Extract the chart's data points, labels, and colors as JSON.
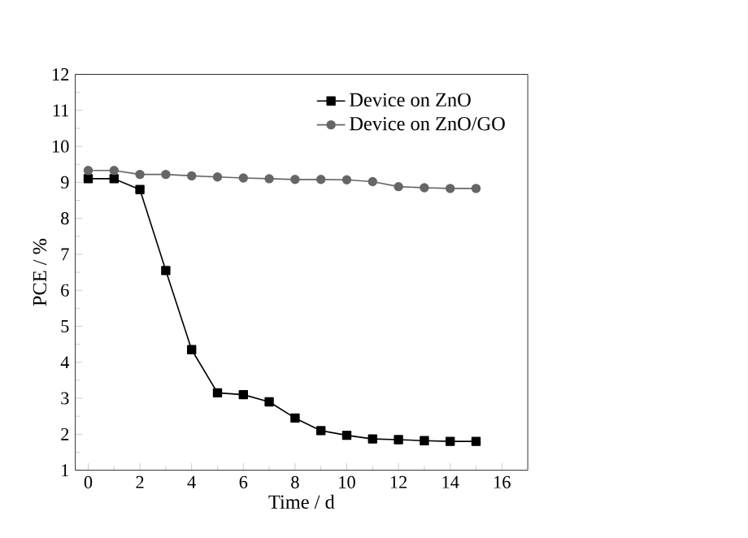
{
  "chart_data": {
    "type": "line",
    "xlabel": "Time / d",
    "ylabel": "PCE / %",
    "x": [
      0,
      1,
      2,
      3,
      4,
      5,
      6,
      7,
      8,
      9,
      10,
      11,
      12,
      13,
      14,
      15
    ],
    "xlim": [
      -0.5,
      17
    ],
    "ylim": [
      1,
      12
    ],
    "xticks": [
      0,
      2,
      4,
      6,
      8,
      10,
      12,
      14,
      16
    ],
    "yticks": [
      1,
      2,
      3,
      4,
      5,
      6,
      7,
      8,
      9,
      10,
      11,
      12
    ],
    "legend": "top right",
    "grid": false,
    "series": [
      {
        "name": "Device on ZnO",
        "color": "#000000",
        "marker": "square",
        "values": [
          9.1,
          9.1,
          8.8,
          6.55,
          4.35,
          3.15,
          3.1,
          2.9,
          2.45,
          2.1,
          1.97,
          1.87,
          1.85,
          1.82,
          1.8,
          1.8
        ]
      },
      {
        "name": "Device on ZnO/GO",
        "color": "#666666",
        "marker": "circle",
        "values": [
          9.33,
          9.33,
          9.22,
          9.22,
          9.18,
          9.15,
          9.12,
          9.1,
          9.08,
          9.08,
          9.07,
          9.02,
          8.88,
          8.85,
          8.83,
          8.83
        ]
      }
    ]
  }
}
